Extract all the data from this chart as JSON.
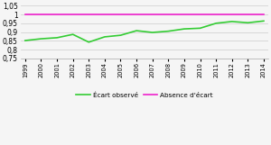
{
  "years": [
    1999,
    2000,
    2001,
    2002,
    2003,
    2004,
    2005,
    2006,
    2007,
    2008,
    2009,
    2010,
    2011,
    2012,
    2013,
    2014
  ],
  "ecart_observe": [
    0.852,
    0.862,
    0.868,
    0.887,
    0.843,
    0.873,
    0.882,
    0.908,
    0.898,
    0.905,
    0.918,
    0.922,
    0.95,
    0.96,
    0.953,
    0.963
  ],
  "absence_ecart": [
    1.0,
    1.0,
    1.0,
    1.0,
    1.0,
    1.0,
    1.0,
    1.0,
    1.0,
    1.0,
    1.0,
    1.0,
    1.0,
    1.0,
    1.0,
    1.0
  ],
  "ylim": [
    0.75,
    1.05
  ],
  "yticks": [
    0.75,
    0.8,
    0.85,
    0.9,
    0.95,
    1.0,
    1.05
  ],
  "ytick_labels": [
    "0,75",
    "0,8",
    "0,85",
    "0,9",
    "0,95",
    "1",
    "1,05"
  ],
  "color_ecart": "#33cc33",
  "color_absence": "#ee22cc",
  "legend_ecart": "Écart observé",
  "legend_absence": "Absence d'écart",
  "bg_color": "#f5f5f5",
  "grid_color": "#cccccc",
  "line_width": 1.2
}
